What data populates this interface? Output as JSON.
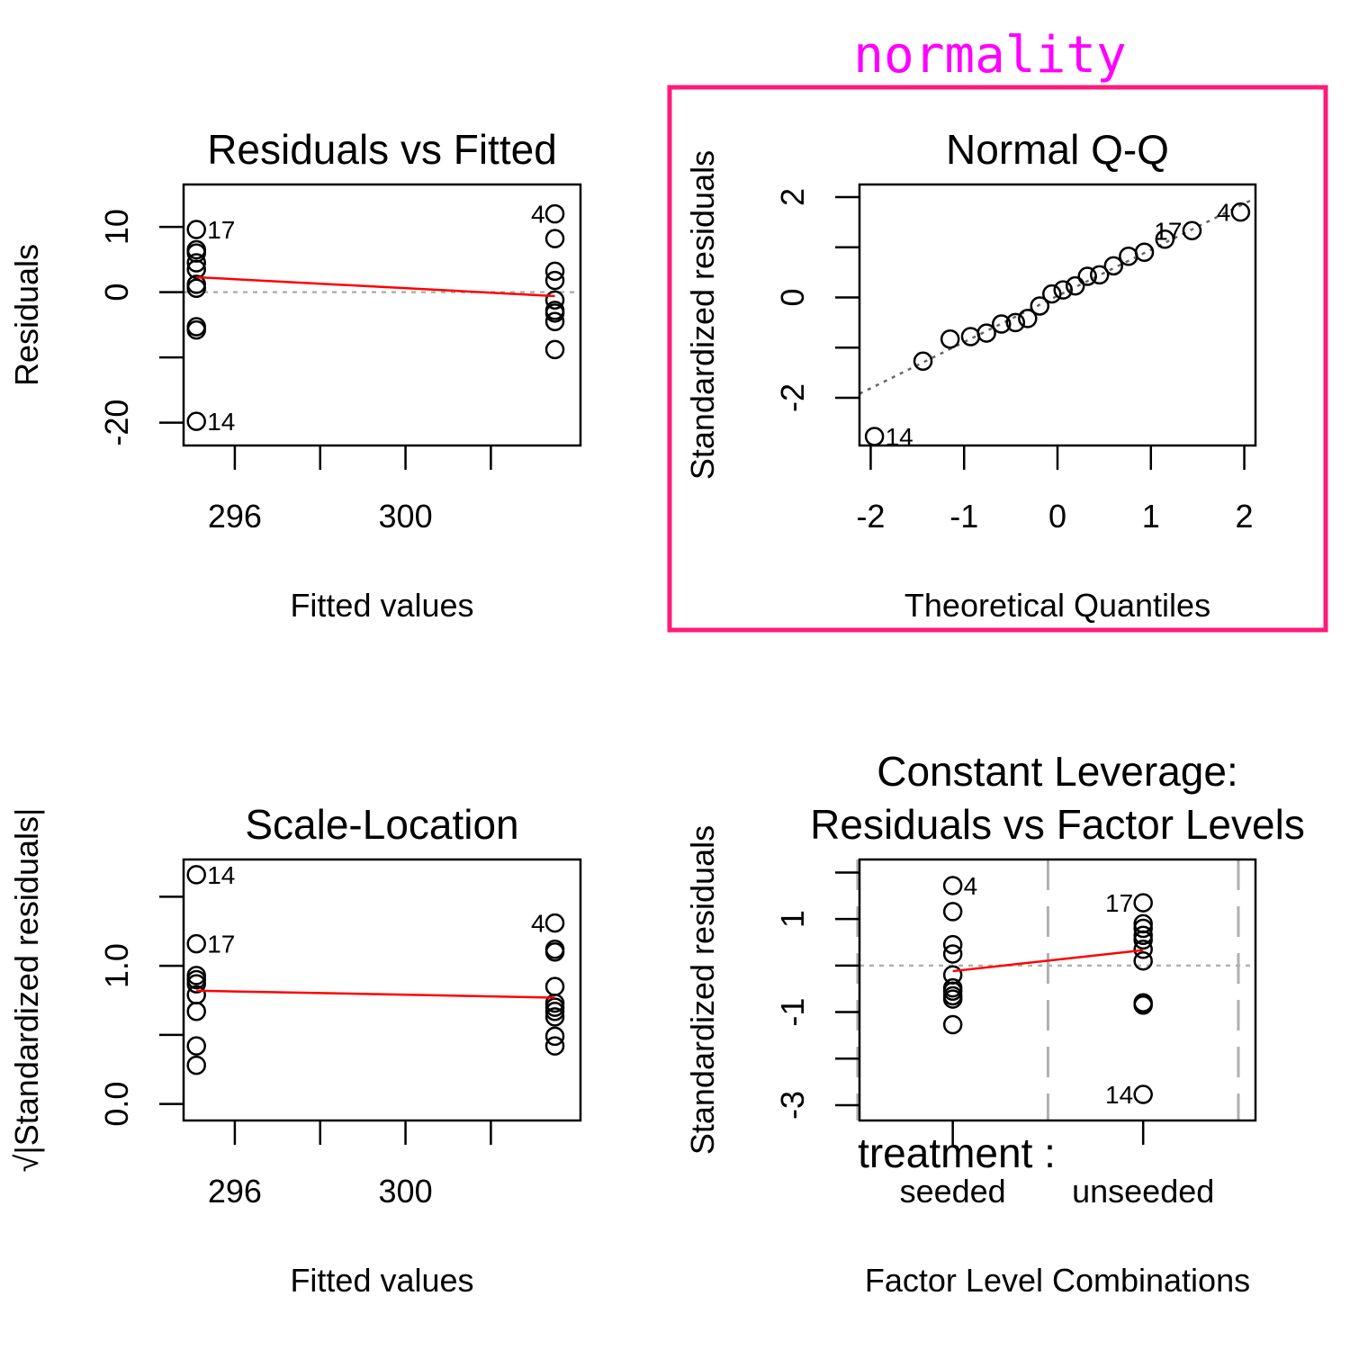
{
  "annotation": {
    "text": "normality",
    "text_color": "#ff00ff",
    "box_color": "#ff1a7a"
  },
  "chart_data": [
    {
      "id": "rvf",
      "type": "scatter",
      "title": "Residuals vs Fitted",
      "xlabel": "Fitted values",
      "ylabel": "Residuals",
      "xlim": [
        294.8,
        304.1
      ],
      "ylim": [
        -23.5,
        16.5
      ],
      "xticks": [
        296,
        298,
        300,
        302
      ],
      "xtick_labels": [
        "296",
        "",
        "300",
        ""
      ],
      "yticks": [
        -20,
        -10,
        0,
        10
      ],
      "ytick_labels": [
        "-20",
        "",
        "0",
        "10"
      ],
      "hline": {
        "y": 0,
        "style": "dotted-gray"
      },
      "points": [
        {
          "x": 295.1,
          "y": 9.6,
          "label": "17"
        },
        {
          "x": 295.1,
          "y": 6.5
        },
        {
          "x": 295.1,
          "y": 6.0
        },
        {
          "x": 295.1,
          "y": 4.5
        },
        {
          "x": 295.1,
          "y": 3.5
        },
        {
          "x": 295.1,
          "y": 1.2
        },
        {
          "x": 295.1,
          "y": 0.6
        },
        {
          "x": 295.1,
          "y": -5.3
        },
        {
          "x": 295.1,
          "y": -5.8
        },
        {
          "x": 295.1,
          "y": -19.8,
          "label": "14"
        },
        {
          "x": 303.5,
          "y": 12.0,
          "label": "4"
        },
        {
          "x": 303.5,
          "y": 8.2
        },
        {
          "x": 303.5,
          "y": 3.2
        },
        {
          "x": 303.5,
          "y": 1.8
        },
        {
          "x": 303.5,
          "y": -1.2
        },
        {
          "x": 303.5,
          "y": -2.8
        },
        {
          "x": 303.5,
          "y": -3.2
        },
        {
          "x": 303.5,
          "y": -4.5
        },
        {
          "x": 303.5,
          "y": -8.8
        }
      ],
      "smooth": {
        "x": [
          295.1,
          303.5
        ],
        "y": [
          2.3,
          -0.6
        ],
        "color": "#ff0000"
      }
    },
    {
      "id": "qq",
      "type": "scatter",
      "title": "Normal Q-Q",
      "xlabel": "Theoretical Quantiles",
      "ylabel": "Standardized residuals",
      "xlim": [
        -2.12,
        2.12
      ],
      "ylim": [
        -2.95,
        2.25
      ],
      "xticks": [
        -2,
        -1,
        0,
        1,
        2
      ],
      "xtick_labels": [
        "-2",
        "-1",
        "0",
        "1",
        "2"
      ],
      "yticks": [
        -2,
        -1,
        0,
        1,
        2
      ],
      "ytick_labels": [
        "-2",
        "",
        "0",
        "",
        "2"
      ],
      "refline": {
        "x": [
          -2.12,
          2.12
        ],
        "y": [
          -1.92,
          1.98
        ],
        "style": "dotted-gray"
      },
      "points": [
        {
          "x": -1.96,
          "y": -2.77,
          "label": "14"
        },
        {
          "x": -1.44,
          "y": -1.27
        },
        {
          "x": -1.15,
          "y": -0.83
        },
        {
          "x": -0.93,
          "y": -0.78
        },
        {
          "x": -0.76,
          "y": -0.71
        },
        {
          "x": -0.6,
          "y": -0.53
        },
        {
          "x": -0.45,
          "y": -0.5
        },
        {
          "x": -0.32,
          "y": -0.42
        },
        {
          "x": -0.19,
          "y": -0.17
        },
        {
          "x": -0.06,
          "y": 0.07
        },
        {
          "x": 0.06,
          "y": 0.15
        },
        {
          "x": 0.19,
          "y": 0.23
        },
        {
          "x": 0.32,
          "y": 0.42
        },
        {
          "x": 0.45,
          "y": 0.45
        },
        {
          "x": 0.6,
          "y": 0.63
        },
        {
          "x": 0.76,
          "y": 0.82
        },
        {
          "x": 0.93,
          "y": 0.9
        },
        {
          "x": 1.15,
          "y": 1.16
        },
        {
          "x": 1.44,
          "y": 1.33,
          "label": "17"
        },
        {
          "x": 1.96,
          "y": 1.7,
          "label": "4"
        }
      ]
    },
    {
      "id": "sl",
      "type": "scatter",
      "title": "Scale-Location",
      "xlabel": "Fitted values",
      "ylabel": "√|Standardized residuals|",
      "xlim": [
        294.8,
        304.1
      ],
      "ylim": [
        -0.12,
        1.77
      ],
      "xticks": [
        296,
        298,
        300,
        302
      ],
      "xtick_labels": [
        "296",
        "",
        "300",
        ""
      ],
      "yticks": [
        0.0,
        0.5,
        1.0,
        1.5
      ],
      "ytick_labels": [
        "0.0",
        "",
        "1.0",
        ""
      ],
      "points": [
        {
          "x": 295.1,
          "y": 1.66,
          "label": "14"
        },
        {
          "x": 295.1,
          "y": 1.16,
          "label": "17"
        },
        {
          "x": 295.1,
          "y": 0.93
        },
        {
          "x": 295.1,
          "y": 0.9
        },
        {
          "x": 295.1,
          "y": 0.87
        },
        {
          "x": 295.1,
          "y": 0.79
        },
        {
          "x": 295.1,
          "y": 0.67
        },
        {
          "x": 295.1,
          "y": 0.42
        },
        {
          "x": 295.1,
          "y": 0.28
        },
        {
          "x": 303.5,
          "y": 1.31,
          "label": "4"
        },
        {
          "x": 303.5,
          "y": 1.12
        },
        {
          "x": 303.5,
          "y": 1.1
        },
        {
          "x": 303.5,
          "y": 0.85
        },
        {
          "x": 303.5,
          "y": 0.73
        },
        {
          "x": 303.5,
          "y": 0.7
        },
        {
          "x": 303.5,
          "y": 0.67
        },
        {
          "x": 303.5,
          "y": 0.63
        },
        {
          "x": 303.5,
          "y": 0.49
        },
        {
          "x": 303.5,
          "y": 0.42
        }
      ],
      "smooth": {
        "x": [
          295.1,
          303.5
        ],
        "y": [
          0.82,
          0.77
        ],
        "color": "#ff0000"
      }
    },
    {
      "id": "rfl",
      "type": "scatter",
      "title": "Constant Leverage:",
      "title2": "Residuals vs Factor Levels",
      "xlabel": "Factor Level Combinations",
      "ylabel": "Standardized residuals",
      "factor_label": "treatment :",
      "categories": [
        "seeded",
        "unseeded"
      ],
      "category_x": [
        1,
        2
      ],
      "xlim": [
        0.51,
        2.59
      ],
      "ylim": [
        -3.33,
        2.28
      ],
      "yticks": [
        -3,
        -2,
        -1,
        0,
        1,
        2
      ],
      "ytick_labels": [
        "-3",
        "",
        "-1",
        "",
        "1",
        ""
      ],
      "vlines": [
        0.5,
        1.5,
        2.5
      ],
      "hline": {
        "y": 0,
        "style": "dotted-gray"
      },
      "points": [
        {
          "x": 1,
          "y": 1.72,
          "label": "4"
        },
        {
          "x": 1,
          "y": 1.16
        },
        {
          "x": 1,
          "y": 0.45
        },
        {
          "x": 1,
          "y": 0.25
        },
        {
          "x": 1,
          "y": -0.2
        },
        {
          "x": 1,
          "y": -0.48
        },
        {
          "x": 1,
          "y": -0.55
        },
        {
          "x": 1,
          "y": -0.65
        },
        {
          "x": 1,
          "y": -0.72
        },
        {
          "x": 1,
          "y": -1.27
        },
        {
          "x": 2,
          "y": 1.35,
          "label": "17"
        },
        {
          "x": 2,
          "y": 0.9
        },
        {
          "x": 2,
          "y": 0.8
        },
        {
          "x": 2,
          "y": 0.65
        },
        {
          "x": 2,
          "y": 0.55
        },
        {
          "x": 2,
          "y": 0.35
        },
        {
          "x": 2,
          "y": 0.1
        },
        {
          "x": 2,
          "y": -0.8
        },
        {
          "x": 2,
          "y": -0.85
        },
        {
          "x": 2,
          "y": -2.77,
          "label": "14"
        }
      ],
      "smooth": {
        "x": [
          1,
          2
        ],
        "y": [
          -0.12,
          0.33
        ],
        "color": "#ff0000"
      }
    }
  ]
}
